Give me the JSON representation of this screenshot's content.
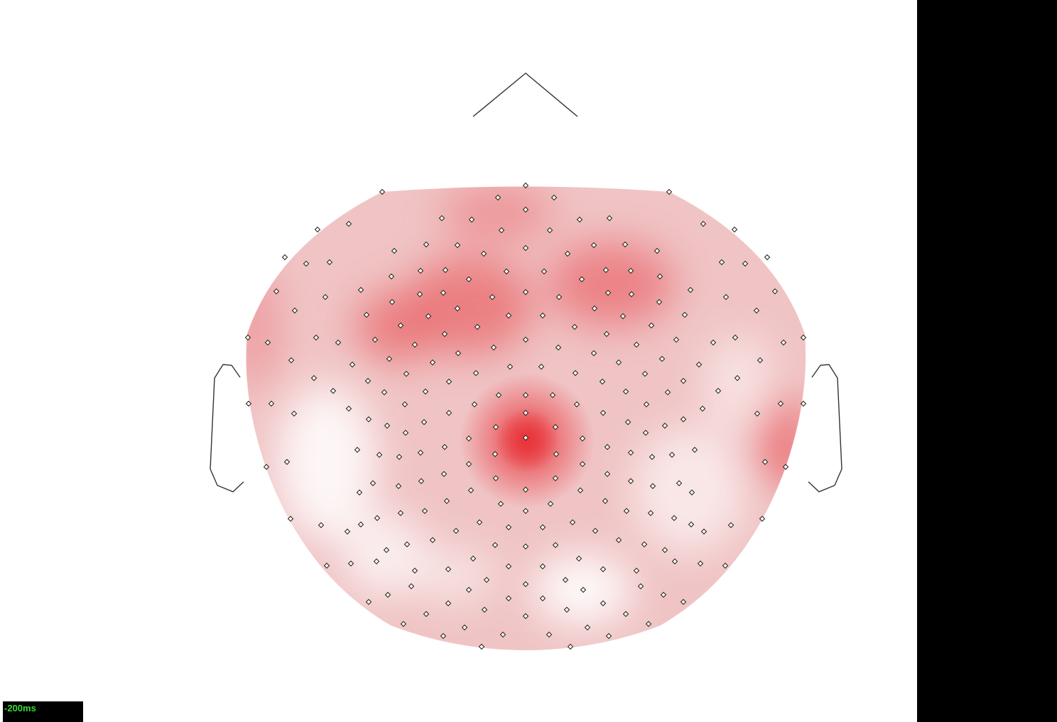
{
  "viewer": {
    "time_label": "-200ms",
    "time_label_color": "#33dd33",
    "background_color": "#ffffff",
    "side_panel_color": "#000000",
    "colormap": {
      "low_color": "#ffffff",
      "high_color": "#e8343a"
    },
    "head_outline_color": "#333333",
    "electrode_marker": {
      "fill": "#fffbe6",
      "stroke": "#222222",
      "shape": "diamond"
    }
  }
}
